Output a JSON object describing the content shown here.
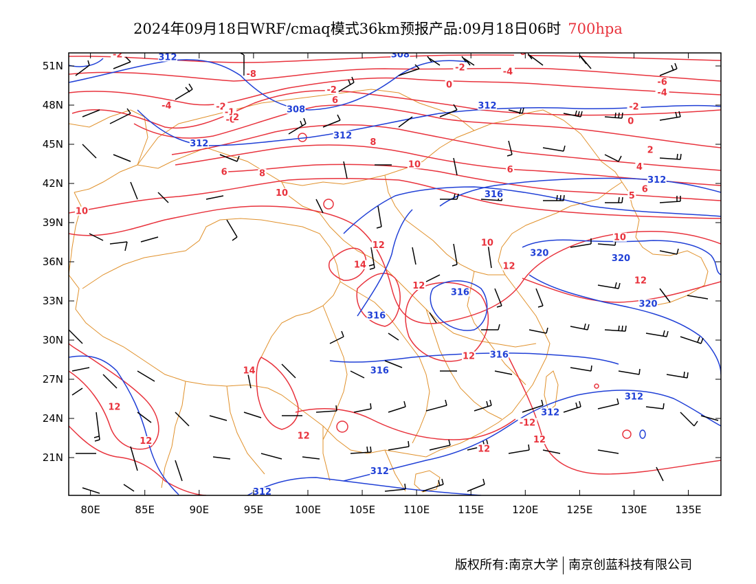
{
  "title": {
    "main": "2024年09月18日WRF/cmaq模式36km预报产品:09月18日06时",
    "level": "700hpa"
  },
  "footer": {
    "left": "版权所有:南京大学",
    "right": "南京创蓝科技有限公司"
  },
  "axes": {
    "lon_labels": [
      "80E",
      "85E",
      "90E",
      "95E",
      "100E",
      "105E",
      "110E",
      "115E",
      "120E",
      "125E",
      "130E",
      "135E"
    ],
    "lat_labels": [
      "51N",
      "48N",
      "45N",
      "42N",
      "39N",
      "36N",
      "33N",
      "30N",
      "27N",
      "24N",
      "21N"
    ]
  },
  "colors": {
    "temperature": "#e8323c",
    "height": "#1f3fd6",
    "border": "#e0902a",
    "wind": "#000000"
  },
  "contour_labels": {
    "temperature": [
      {
        "text": "-2",
        "lon": 82.5,
        "lat": 51.7
      },
      {
        "text": "-8",
        "lon": 94.8,
        "lat": 50.2
      },
      {
        "text": "-4",
        "lon": 87.0,
        "lat": 47.8
      },
      {
        "text": "-2",
        "lon": 102.2,
        "lat": 49.0
      },
      {
        "text": "-2",
        "lon": 92.0,
        "lat": 47.7
      },
      {
        "text": "-1",
        "lon": 92.8,
        "lat": 47.3
      },
      {
        "text": "-0",
        "lon": 92.9,
        "lat": 46.7
      },
      {
        "text": "2",
        "lon": 93.4,
        "lat": 46.9
      },
      {
        "text": "6",
        "lon": 102.5,
        "lat": 48.2
      },
      {
        "text": "0",
        "lon": 113.0,
        "lat": 49.4
      },
      {
        "text": "8",
        "lon": 106.0,
        "lat": 45.0
      },
      {
        "text": "-2",
        "lon": 114.0,
        "lat": 50.7
      },
      {
        "text": "-4",
        "lon": 118.4,
        "lat": 50.4
      },
      {
        "text": "-6",
        "lon": 119.6,
        "lat": 51.9
      },
      {
        "text": "0",
        "lon": 129.7,
        "lat": 46.6
      },
      {
        "text": "-2",
        "lon": 130.0,
        "lat": 47.7
      },
      {
        "text": "-6",
        "lon": 132.6,
        "lat": 49.6
      },
      {
        "text": "-4",
        "lon": 132.6,
        "lat": 48.8
      },
      {
        "text": "2",
        "lon": 131.5,
        "lat": 44.4
      },
      {
        "text": "4",
        "lon": 130.5,
        "lat": 43.1
      },
      {
        "text": "6",
        "lon": 131.0,
        "lat": 41.4
      },
      {
        "text": "5",
        "lon": 129.8,
        "lat": 40.9
      },
      {
        "text": "6",
        "lon": 92.3,
        "lat": 42.7
      },
      {
        "text": "8",
        "lon": 95.8,
        "lat": 42.6
      },
      {
        "text": "6",
        "lon": 118.6,
        "lat": 42.9
      },
      {
        "text": "10",
        "lon": 109.8,
        "lat": 43.3
      },
      {
        "text": "10",
        "lon": 97.6,
        "lat": 41.1
      },
      {
        "text": "10",
        "lon": 79.2,
        "lat": 39.7
      },
      {
        "text": "10",
        "lon": 116.5,
        "lat": 37.3
      },
      {
        "text": "10",
        "lon": 128.7,
        "lat": 37.7
      },
      {
        "text": "12",
        "lon": 106.5,
        "lat": 37.1
      },
      {
        "text": "14",
        "lon": 104.8,
        "lat": 35.6
      },
      {
        "text": "12",
        "lon": 118.5,
        "lat": 35.5
      },
      {
        "text": "12",
        "lon": 110.2,
        "lat": 34.0
      },
      {
        "text": "12",
        "lon": 130.6,
        "lat": 34.4
      },
      {
        "text": "12",
        "lon": 114.8,
        "lat": 28.6
      },
      {
        "text": "14",
        "lon": 94.6,
        "lat": 27.5
      },
      {
        "text": "12",
        "lon": 82.2,
        "lat": 24.7
      },
      {
        "text": "12",
        "lon": 99.6,
        "lat": 22.5
      },
      {
        "text": "12",
        "lon": 85.1,
        "lat": 22.1
      },
      {
        "text": "-12",
        "lon": 120.2,
        "lat": 23.5
      },
      {
        "text": "12",
        "lon": 121.3,
        "lat": 22.2
      },
      {
        "text": "12",
        "lon": 116.2,
        "lat": 21.5
      }
    ],
    "height": [
      {
        "text": "312",
        "lon": 87.1,
        "lat": 51.5
      },
      {
        "text": "308",
        "lon": 108.5,
        "lat": 51.7
      },
      {
        "text": "308",
        "lon": 98.9,
        "lat": 47.5
      },
      {
        "text": "312",
        "lon": 103.2,
        "lat": 45.5
      },
      {
        "text": "312",
        "lon": 116.5,
        "lat": 47.8
      },
      {
        "text": "312",
        "lon": 90.0,
        "lat": 44.9
      },
      {
        "text": "312",
        "lon": 132.1,
        "lat": 42.1
      },
      {
        "text": "316",
        "lon": 117.1,
        "lat": 41.0
      },
      {
        "text": "320",
        "lon": 121.3,
        "lat": 36.5
      },
      {
        "text": "320",
        "lon": 128.8,
        "lat": 36.1
      },
      {
        "text": "316",
        "lon": 114.0,
        "lat": 33.5
      },
      {
        "text": "320",
        "lon": 131.3,
        "lat": 32.6
      },
      {
        "text": "316",
        "lon": 106.3,
        "lat": 31.7
      },
      {
        "text": "316",
        "lon": 117.6,
        "lat": 28.7
      },
      {
        "text": "316",
        "lon": 106.6,
        "lat": 27.5
      },
      {
        "text": "312",
        "lon": 130.0,
        "lat": 25.5
      },
      {
        "text": "312",
        "lon": 122.3,
        "lat": 24.3
      },
      {
        "text": "312",
        "lon": 106.6,
        "lat": 19.8
      },
      {
        "text": "312",
        "lon": 95.8,
        "lat": 18.2
      }
    ]
  }
}
